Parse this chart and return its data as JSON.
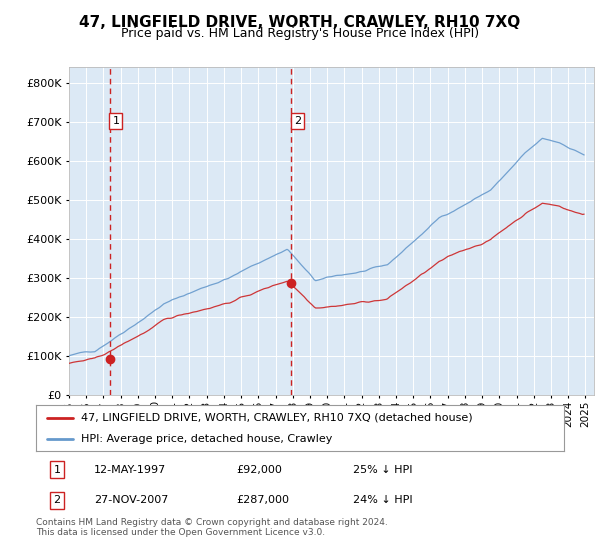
{
  "title": "47, LINGFIELD DRIVE, WORTH, CRAWLEY, RH10 7XQ",
  "subtitle": "Price paid vs. HM Land Registry's House Price Index (HPI)",
  "legend_line1": "47, LINGFIELD DRIVE, WORTH, CRAWLEY, RH10 7XQ (detached house)",
  "legend_line2": "HPI: Average price, detached house, Crawley",
  "sale1_label": "1",
  "sale1_date": "12-MAY-1997",
  "sale1_price": "£92,000",
  "sale1_hpi": "25% ↓ HPI",
  "sale2_label": "2",
  "sale2_date": "27-NOV-2007",
  "sale2_price": "£287,000",
  "sale2_hpi": "24% ↓ HPI",
  "footer": "Contains HM Land Registry data © Crown copyright and database right 2024.\nThis data is licensed under the Open Government Licence v3.0.",
  "plot_bg_color": "#dce9f5",
  "hpi_color": "#6699cc",
  "price_color": "#cc2222",
  "vline_color": "#cc2222",
  "marker_color": "#cc2222",
  "sale1_year": 1997.37,
  "sale2_year": 2007.9,
  "sale1_price_val": 92000,
  "sale2_price_val": 287000,
  "ylim_min": 0,
  "ylim_max": 840000,
  "xlim_min": 1995.0,
  "xlim_max": 2025.5
}
